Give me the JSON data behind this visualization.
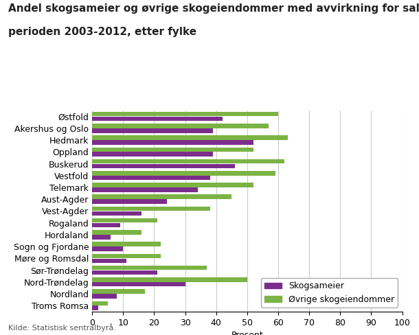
{
  "title_line1": "Andel skogsameier og øvrige skogeiendommer med avvirkning for salg i",
  "title_line2": "perioden 2003-2012, etter fylke",
  "xlabel": "Prosent",
  "source": "Kilde: Statistisk sentralbyrå.",
  "categories": [
    "Østfold",
    "Akershus og Oslo",
    "Hedmark",
    "Oppland",
    "Buskerud",
    "Vestfold",
    "Telemark",
    "Aust-Agder",
    "Vest-Agder",
    "Rogaland",
    "Hordaland",
    "Sogn og Fjordane",
    "Møre og Romsdal",
    "Sør-Trøndelag",
    "Nord-Trøndelag",
    "Nordland",
    "Troms Romsa"
  ],
  "skogsameier": [
    42,
    39,
    52,
    39,
    46,
    38,
    34,
    24,
    16,
    9,
    6,
    10,
    11,
    21,
    30,
    8,
    2
  ],
  "ovrige": [
    60,
    57,
    63,
    52,
    62,
    59,
    52,
    45,
    38,
    21,
    16,
    22,
    22,
    37,
    50,
    17,
    5
  ],
  "color_skogsameier": "#7B2D8B",
  "color_ovrige": "#7BB344",
  "xlim": [
    0,
    100
  ],
  "xticks": [
    0,
    10,
    20,
    30,
    40,
    50,
    60,
    70,
    80,
    90,
    100
  ],
  "legend_labels": [
    "Skogsameier",
    "Øvrige skogeiendommer"
  ],
  "background_color": "#ffffff",
  "grid_color": "#cccccc",
  "title_fontsize": 11,
  "label_fontsize": 9,
  "tick_fontsize": 9,
  "bar_height": 0.38,
  "bar_gap": 0.02
}
